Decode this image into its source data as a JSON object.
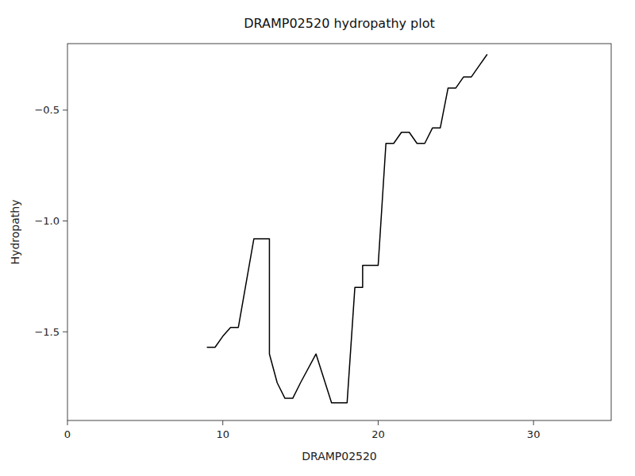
{
  "chart_data": {
    "type": "line",
    "title": "DRAMP02520 hydropathy plot",
    "xlabel": "DRAMP02520",
    "ylabel": "Hydropathy",
    "xlim": [
      0,
      35
    ],
    "ylim": [
      -1.9,
      -0.2
    ],
    "xticks": [
      0,
      10,
      20,
      30
    ],
    "yticks": [
      {
        "value": -1.5,
        "label": "−1.5"
      },
      {
        "value": -1.0,
        "label": "−1.0"
      },
      {
        "value": -0.5,
        "label": "−0.5"
      }
    ],
    "color": "black",
    "grid": false,
    "x": [
      9.0,
      9.5,
      10.0,
      10.5,
      11.0,
      12.0,
      13.0,
      13.0,
      13.5,
      14.0,
      14.5,
      15.0,
      16.0,
      17.0,
      18.0,
      18.5,
      19.0,
      19.0,
      19.5,
      20.0,
      20.5,
      21.0,
      21.5,
      22.0,
      22.5,
      23.0,
      23.5,
      24.0,
      24.5,
      25.0,
      25.5,
      26.0,
      26.5,
      27.0
    ],
    "values": [
      -1.57,
      -1.57,
      -1.52,
      -1.48,
      -1.48,
      -1.08,
      -1.08,
      -1.6,
      -1.73,
      -1.8,
      -1.8,
      -1.73,
      -1.6,
      -1.82,
      -1.82,
      -1.3,
      -1.3,
      -1.2,
      -1.2,
      -1.2,
      -0.65,
      -0.65,
      -0.6,
      -0.6,
      -0.65,
      -0.65,
      -0.58,
      -0.58,
      -0.4,
      -0.4,
      -0.35,
      -0.35,
      -0.3,
      -0.25
    ]
  }
}
